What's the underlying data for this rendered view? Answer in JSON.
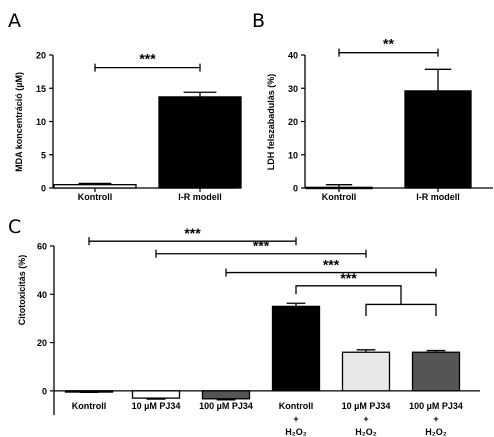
{
  "chart_data": [
    {
      "panel_label": "A",
      "type": "bar",
      "categories": [
        "Kontroll",
        "I-R modell"
      ],
      "values": [
        0.5,
        13.7
      ],
      "errors": [
        0.2,
        0.7
      ],
      "colors": [
        "#ffffff",
        "#000000"
      ],
      "ylabel": "MDA koncentráció (µM)",
      "ylim": [
        0,
        20
      ],
      "yticks": [
        0,
        5,
        10,
        15,
        20
      ],
      "significance": [
        {
          "from": 0,
          "to": 1,
          "label": "***",
          "level": 18.1
        }
      ]
    },
    {
      "panel_label": "B",
      "type": "bar",
      "categories": [
        "Kontroll",
        "I-R modell"
      ],
      "values": [
        0.2,
        29.2
      ],
      "errors": [
        0.8,
        6.5
      ],
      "colors": [
        "#ffffff",
        "#000000"
      ],
      "ylabel": "LDH felszabadulás (%)",
      "ylim": [
        0,
        40
      ],
      "yticks": [
        0,
        10,
        20,
        30,
        40
      ],
      "significance": [
        {
          "from": 0,
          "to": 1,
          "label": "**",
          "level": 40.7
        }
      ]
    },
    {
      "panel_label": "C",
      "type": "bar",
      "categories": [
        [
          "Kontroll"
        ],
        [
          "10 µM PJ34"
        ],
        [
          "100 µM PJ34"
        ],
        [
          "Kontroll",
          "+",
          "H₂O₂"
        ],
        [
          "10 µM PJ34",
          "+",
          "H₂O₂"
        ],
        [
          "100 µM PJ34",
          "+",
          "H₂O₂"
        ]
      ],
      "values": [
        -0.3,
        -3.0,
        -3.3,
        35.0,
        16.0,
        16.0
      ],
      "errors": [
        0.3,
        0.4,
        0.4,
        1.3,
        1.0,
        0.7
      ],
      "colors": [
        "#ffffff",
        "#ffffff",
        "#555555",
        "#000000",
        "#e8e8e8",
        "#555555"
      ],
      "ylabel": "Citotoxicitás (%)",
      "ylim": [
        -10,
        60
      ],
      "yticks": [
        0,
        20,
        40,
        60
      ],
      "significance": [
        {
          "type": "line",
          "from": 0,
          "to": 3,
          "label": "***",
          "level": 62.0
        },
        {
          "type": "line",
          "from": 1,
          "to": 4,
          "label": "***",
          "level": 56.8
        },
        {
          "type": "line",
          "from": 2,
          "to": 5,
          "label": "***",
          "level": 49.0
        },
        {
          "type": "bracket",
          "from": 3,
          "to_group": [
            4,
            5
          ],
          "label": "***",
          "level": 43.5
        }
      ]
    }
  ]
}
